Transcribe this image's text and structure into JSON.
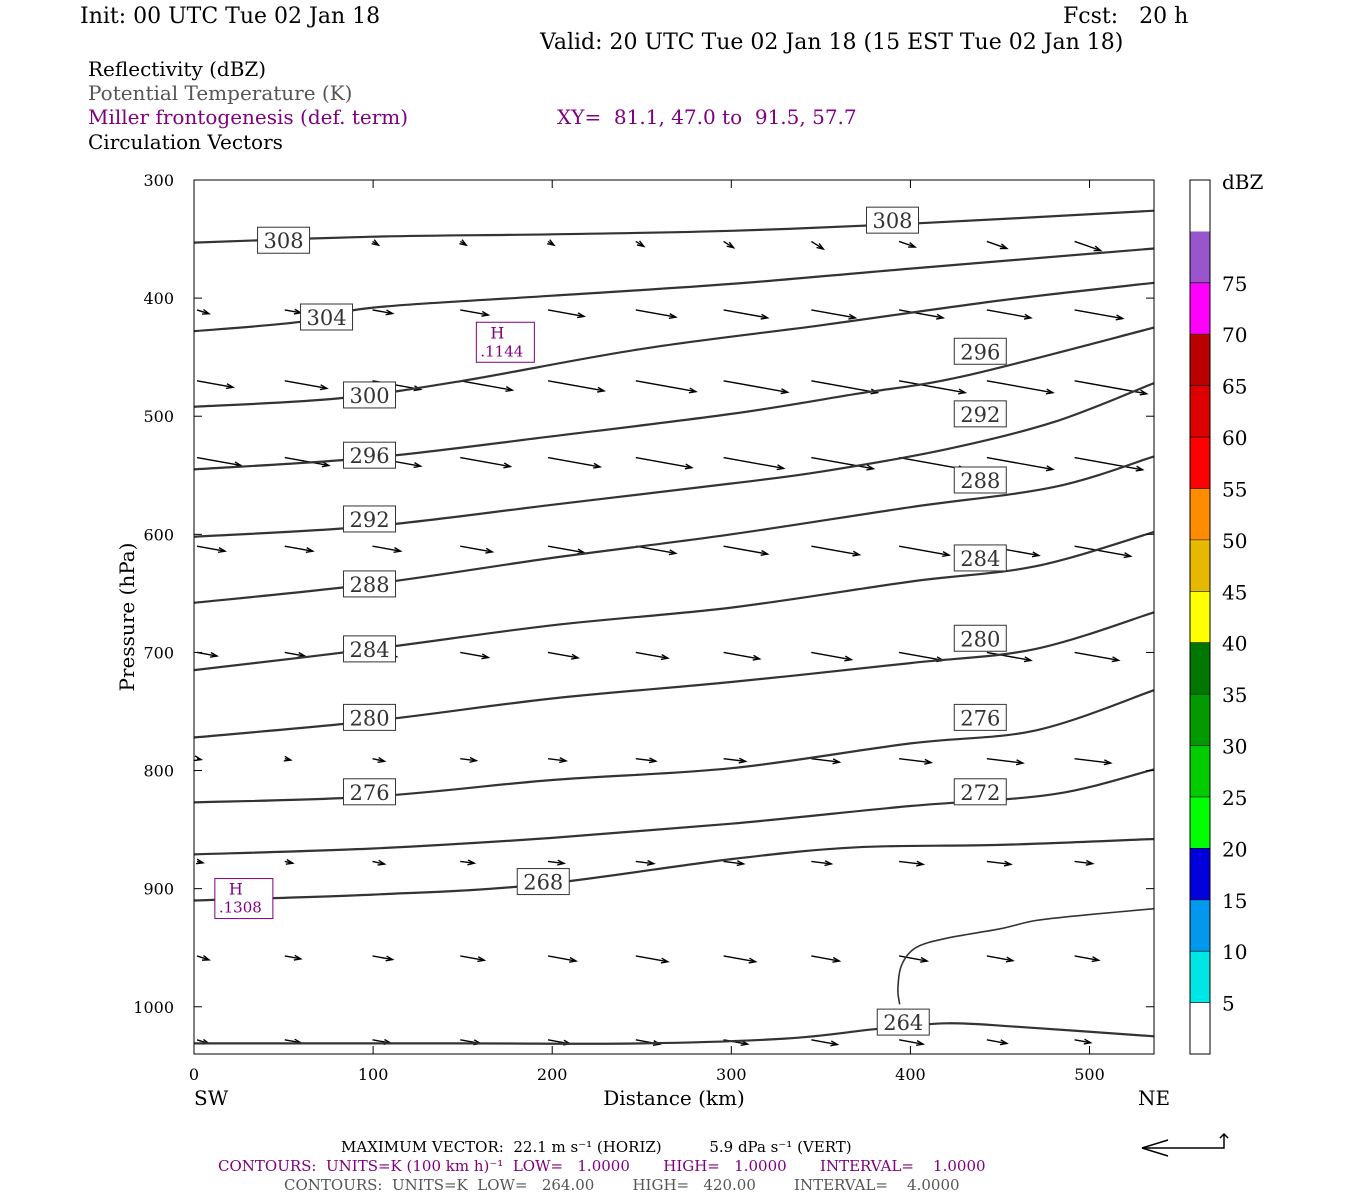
{
  "header": {
    "init": "Init: 00 UTC Tue 02 Jan 18",
    "fcst": "Fcst:   20 h",
    "valid": "Valid: 20 UTC Tue 02 Jan 18 (15 EST Tue 02 Jan 18)"
  },
  "fields": {
    "reflectivity": "Reflectivity (dBZ)",
    "theta": "Potential Temperature (K)",
    "miller": "Miller frontogenesis (def. term)",
    "xy": "XY=  81.1, 47.0 to  91.5, 57.7",
    "vectors": "Circulation Vectors"
  },
  "colors": {
    "theta": "#333333",
    "miller": "#800080",
    "vector": "#000000"
  },
  "colorbar": {
    "title": "dBZ",
    "levels": [
      "5",
      "10",
      "15",
      "20",
      "25",
      "30",
      "35",
      "40",
      "45",
      "50",
      "55",
      "60",
      "65",
      "70",
      "75"
    ],
    "colors": [
      "#ffffff",
      "#00e5e5",
      "#0099ee",
      "#0000dd",
      "#00ff00",
      "#00cc00",
      "#009900",
      "#007700",
      "#ffff00",
      "#e6b800",
      "#ff8c00",
      "#ff0000",
      "#dd0000",
      "#bb0000",
      "#ff00ff",
      "#9955cc",
      "#ffffff"
    ]
  },
  "footer": {
    "max_vector": "MAXIMUM VECTOR:  22.1 m s⁻¹ (HORIZ)          5.9 dPa s⁻¹ (VERT)",
    "contours_miller": "CONTOURS:  UNITS=K (100 km h)⁻¹  LOW=   1.0000       HIGH=   1.0000       INTERVAL=    1.0000",
    "contours_theta": "CONTOURS:  UNITS=K  LOW=   264.00        HIGH=   420.00        INTERVAL=    4.0000"
  },
  "chart_data": {
    "type": "line",
    "title": "",
    "xlabel": "Distance (km)",
    "ylabel": "Pressure (hPa)",
    "xlim": [
      0,
      536
    ],
    "ylim": [
      1040,
      300
    ],
    "y_scale": "pressure (inverted)",
    "x_ticks": [
      0,
      100,
      200,
      300,
      400,
      500
    ],
    "y_ticks": [
      300,
      400,
      500,
      600,
      700,
      800,
      900,
      1000
    ],
    "x_endpoints": {
      "left": "SW",
      "right": "NE"
    },
    "theta_contours": [
      {
        "name": "308",
        "points": [
          [
            0,
            353
          ],
          [
            100,
            348
          ],
          [
            200,
            346
          ],
          [
            300,
            343
          ],
          [
            400,
            337
          ],
          [
            536,
            326
          ]
        ],
        "labels": [
          [
            50,
            351
          ],
          [
            390,
            334
          ]
        ]
      },
      {
        "name": "304",
        "points": [
          [
            0,
            428
          ],
          [
            60,
            420
          ],
          [
            100,
            408
          ],
          [
            200,
            398
          ],
          [
            300,
            388
          ],
          [
            400,
            375
          ],
          [
            536,
            358
          ]
        ],
        "labels": [
          [
            74,
            416
          ]
        ]
      },
      {
        "name": "300",
        "points": [
          [
            0,
            492
          ],
          [
            80,
            485
          ],
          [
            150,
            470
          ],
          [
            250,
            443
          ],
          [
            350,
            423
          ],
          [
            450,
            402
          ],
          [
            536,
            387
          ]
        ],
        "labels": [
          [
            98,
            482
          ]
        ]
      },
      {
        "name": "296",
        "points": [
          [
            0,
            545
          ],
          [
            100,
            535
          ],
          [
            200,
            517
          ],
          [
            300,
            498
          ],
          [
            370,
            481
          ],
          [
            430,
            466
          ],
          [
            536,
            425
          ]
        ],
        "labels": [
          [
            98,
            533
          ],
          [
            439,
            445
          ]
        ]
      },
      {
        "name": "292",
        "points": [
          [
            0,
            602
          ],
          [
            100,
            593
          ],
          [
            200,
            575
          ],
          [
            300,
            557
          ],
          [
            350,
            547
          ],
          [
            420,
            528
          ],
          [
            480,
            505
          ],
          [
            536,
            472
          ]
        ],
        "labels": [
          [
            98,
            587
          ],
          [
            439,
            498
          ]
        ]
      },
      {
        "name": "288",
        "points": [
          [
            0,
            658
          ],
          [
            100,
            642
          ],
          [
            200,
            620
          ],
          [
            300,
            600
          ],
          [
            400,
            577
          ],
          [
            480,
            560
          ],
          [
            536,
            534
          ]
        ],
        "labels": [
          [
            98,
            642
          ],
          [
            439,
            554
          ]
        ]
      },
      {
        "name": "284",
        "points": [
          [
            0,
            715
          ],
          [
            100,
            697
          ],
          [
            200,
            677
          ],
          [
            300,
            662
          ],
          [
            400,
            640
          ],
          [
            470,
            627
          ],
          [
            536,
            598
          ]
        ],
        "labels": [
          [
            98,
            697
          ],
          [
            439,
            620
          ]
        ]
      },
      {
        "name": "280",
        "points": [
          [
            0,
            772
          ],
          [
            100,
            758
          ],
          [
            200,
            739
          ],
          [
            300,
            725
          ],
          [
            400,
            709
          ],
          [
            470,
            697
          ],
          [
            536,
            666
          ]
        ],
        "labels": [
          [
            98,
            755
          ],
          [
            439,
            688
          ]
        ]
      },
      {
        "name": "276",
        "points": [
          [
            0,
            827
          ],
          [
            100,
            822
          ],
          [
            200,
            808
          ],
          [
            300,
            798
          ],
          [
            400,
            777
          ],
          [
            470,
            766
          ],
          [
            536,
            732
          ]
        ],
        "labels": [
          [
            98,
            818
          ],
          [
            439,
            755
          ]
        ]
      },
      {
        "name": "272",
        "points": [
          [
            0,
            871
          ],
          [
            100,
            866
          ],
          [
            200,
            857
          ],
          [
            300,
            845
          ],
          [
            400,
            830
          ],
          [
            480,
            820
          ],
          [
            536,
            799
          ]
        ],
        "labels": [
          [
            439,
            818
          ]
        ]
      },
      {
        "name": "268",
        "points": [
          [
            0,
            910
          ],
          [
            100,
            905
          ],
          [
            190,
            897
          ],
          [
            300,
            875
          ],
          [
            370,
            865
          ],
          [
            450,
            863
          ],
          [
            536,
            858
          ]
        ],
        "labels": [
          [
            195,
            894
          ]
        ]
      },
      {
        "name": "264",
        "points": [
          [
            0,
            1031
          ],
          [
            150,
            1031
          ],
          [
            250,
            1031
          ],
          [
            330,
            1027
          ],
          [
            380,
            1019
          ],
          [
            420,
            1014
          ],
          [
            460,
            1017
          ],
          [
            536,
            1025
          ]
        ],
        "labels": [
          [
            396,
            1013
          ]
        ]
      }
    ],
    "theta_open_contour": {
      "name": "264",
      "points": [
        [
          394,
          998
        ],
        [
          393,
          985
        ],
        [
          395,
          965
        ],
        [
          403,
          950
        ],
        [
          420,
          942
        ],
        [
          450,
          934
        ],
        [
          470,
          927
        ],
        [
          500,
          922
        ],
        [
          536,
          917
        ]
      ]
    },
    "frontogenesis_maxima": [
      {
        "label": "H",
        "value": ".1144",
        "x": 161,
        "y": 434
      },
      {
        "label": "H",
        "value": ".1308",
        "x": 15,
        "y": 905
      }
    ],
    "vectors": {
      "x_positions": [
        0,
        49,
        98,
        147,
        196,
        245,
        294,
        343,
        392,
        441,
        490
      ],
      "rows": [
        {
          "p": 352,
          "dx": [
            0,
            0,
            3,
            3,
            3,
            4,
            5,
            6,
            8,
            10,
            13
          ]
        },
        {
          "p": 410,
          "dx": [
            6,
            8,
            10,
            14,
            18,
            20,
            22,
            22,
            22,
            22,
            24
          ]
        },
        {
          "p": 470,
          "dx": [
            18,
            21,
            24,
            26,
            28,
            30,
            32,
            33,
            33,
            33,
            36
          ]
        },
        {
          "p": 535,
          "dx": [
            22,
            22,
            24,
            25,
            26,
            28,
            30,
            31,
            33,
            33,
            34
          ]
        },
        {
          "p": 610,
          "dx": [
            14,
            14,
            14,
            16,
            18,
            20,
            22,
            24,
            25,
            26,
            28
          ]
        },
        {
          "p": 700,
          "dx": [
            10,
            10,
            12,
            14,
            15,
            16,
            18,
            20,
            22,
            22,
            22
          ]
        },
        {
          "p": 790,
          "dx": [
            2,
            3,
            6,
            8,
            9,
            10,
            11,
            14,
            16,
            18,
            18
          ]
        },
        {
          "p": 877,
          "dx": [
            3,
            4,
            6,
            7,
            8,
            9,
            10,
            10,
            12,
            12,
            9
          ]
        },
        {
          "p": 957,
          "dx": [
            6,
            8,
            10,
            12,
            14,
            16,
            16,
            14,
            14,
            13,
            12
          ]
        },
        {
          "p": 1028,
          "dx": [
            6,
            8,
            9,
            10,
            11,
            12,
            12,
            13,
            12,
            10,
            8
          ]
        }
      ]
    }
  }
}
